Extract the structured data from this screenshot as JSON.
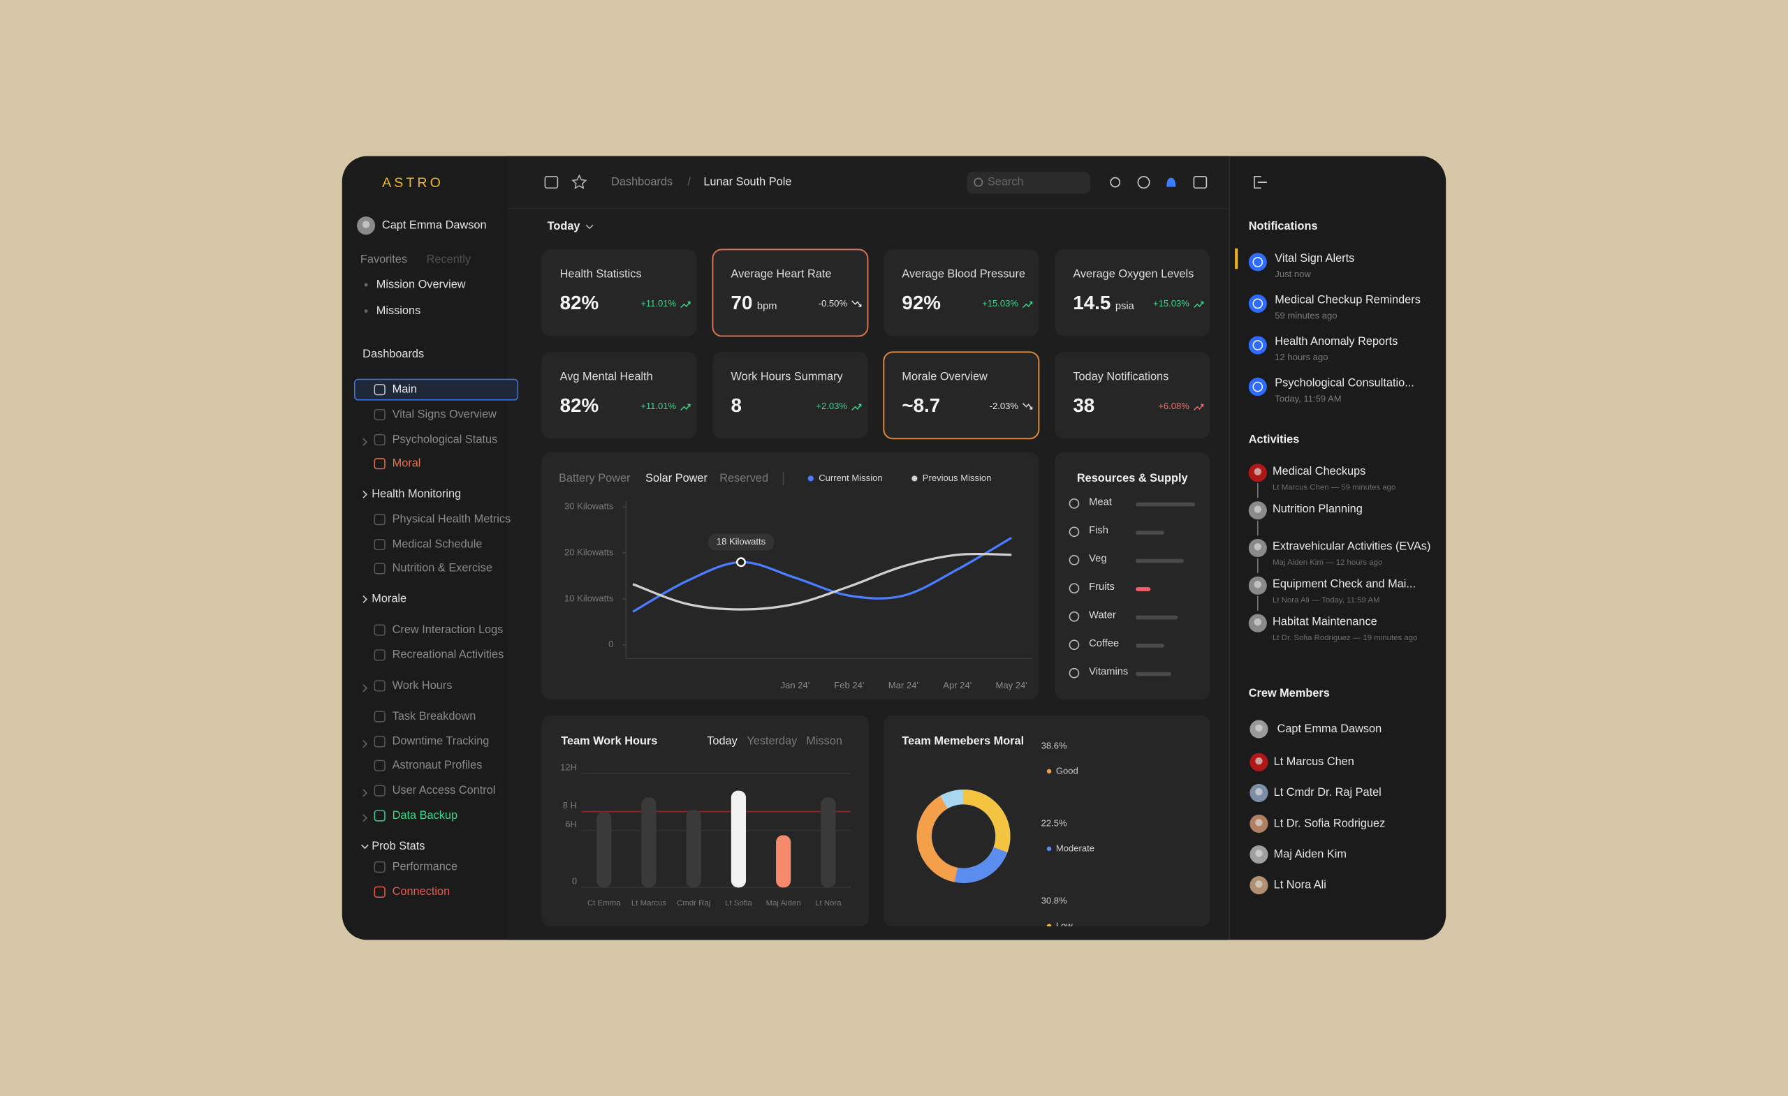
{
  "brand": "ASTRO",
  "user": "Capt Emma Dawson",
  "breadcrumb": [
    "Dashboards",
    "Lunar South Pole"
  ],
  "breadcrumb_separator": "/",
  "search": "Search",
  "sidebar": {
    "tabs": [
      "Favorites",
      "Recently"
    ],
    "favorites": [
      "Mission Overview",
      "Missions"
    ],
    "section": "Dashboards",
    "items": [
      {
        "label": "Main",
        "selected": true
      },
      {
        "label": "Vital Signs Overview"
      },
      {
        "label": "Psychological Status",
        "expandable": true
      },
      {
        "label": "Moral",
        "color": "#e8734a"
      },
      {
        "label": "Health Monitoring",
        "group": true
      },
      {
        "label": "Physical Health Metrics"
      },
      {
        "label": "Medical Schedule"
      },
      {
        "label": "Nutrition & Exercise"
      },
      {
        "label": "Morale",
        "group": true
      },
      {
        "label": "Crew Interaction Logs"
      },
      {
        "label": "Recreational Activities"
      },
      {
        "label": "Work Hours",
        "expandable": true
      },
      {
        "label": "Task Breakdown"
      },
      {
        "label": "Downtime Tracking",
        "expandable": true
      },
      {
        "label": "Astronaut Profiles"
      },
      {
        "label": "User Access Control",
        "expandable": true
      },
      {
        "label": "Data Backup",
        "expandable": true,
        "color": "#3dd68c"
      },
      {
        "label": "Prob Stats",
        "group": true
      },
      {
        "label": "Performance"
      },
      {
        "label": "Connection",
        "color": "#f0584a"
      }
    ]
  },
  "filter": "Today",
  "kpis": [
    {
      "title": "Health Statistics",
      "value": "82%",
      "change": "+11.01%",
      "color": "#3dd68c",
      "trend": "up"
    },
    {
      "title": "Average Heart Rate",
      "value": "70",
      "unit": "bpm",
      "change": "-0.50%",
      "color": "#e6e6e6",
      "trend": "down",
      "highlight": "#d9735a"
    },
    {
      "title": "Average Blood Pressure",
      "value": "92%",
      "change": "+15.03%",
      "color": "#3dd68c",
      "trend": "up"
    },
    {
      "title": "Average Oxygen Levels",
      "value": "14.5",
      "unit": "psia",
      "change": "+15.03%",
      "color": "#3dd68c",
      "trend": "up"
    },
    {
      "title": "Avg Mental Health",
      "value": "82%",
      "change": "+11.01%",
      "color": "#3dd68c",
      "trend": "up"
    },
    {
      "title": "Work Hours Summary",
      "value": "8",
      "change": "+2.03%",
      "color": "#3dd68c",
      "trend": "up"
    },
    {
      "title": "Morale Overview",
      "value": "~8.7",
      "change": "-2.03%",
      "color": "#e6e6e6",
      "trend": "down",
      "highlight": "#e08a3c"
    },
    {
      "title": "Today Notifications",
      "value": "38",
      "change": "+6.08%",
      "color": "#f0706a",
      "trend": "up"
    }
  ],
  "chart_data": [
    {
      "type": "line",
      "tabs": [
        "Battery Power",
        "Solar Power",
        "Reserved"
      ],
      "active_tab": 1,
      "categories": [
        null,
        null,
        null,
        "Jan 24'",
        "Feb 24'",
        "Mar 24'",
        "Apr 24'",
        "May 24'"
      ],
      "series": [
        {
          "name": "Current Mission",
          "color": "#4a7dff",
          "values": [
            7.2,
            13.9,
            18,
            14.6,
            10.7,
            10.7,
            16.4,
            23.3
          ],
          "value_labels": [
            null,
            null,
            "18 Kilowatts",
            null,
            null,
            null,
            null,
            null
          ]
        },
        {
          "name": "Previous Mission",
          "color": "#d0d0d0",
          "values": [
            13.2,
            8.9,
            7.7,
            8.9,
            12.7,
            17.1,
            19.6,
            19.6
          ]
        }
      ],
      "ylim": [
        0,
        30
      ],
      "yticks": [
        {
          "value": 30,
          "label": "30 Kilowatts"
        },
        {
          "value": 20,
          "label": "20 Kilowatts"
        },
        {
          "value": 10,
          "label": "10 Kilowatts"
        },
        0
      ]
    },
    {
      "type": "hbar",
      "title": "Resources & Supply",
      "categories": [
        "Meat",
        "Fish",
        "Veg",
        "Fruits",
        "Water",
        "Coffee",
        "Vitamins"
      ],
      "values": [
        100,
        48,
        81,
        25,
        71,
        48,
        60
      ],
      "colors": [
        "#4a4a4a",
        "#4a4a4a",
        "#4a4a4a",
        "#f0606a",
        "#4a4a4a",
        "#4a4a4a",
        "#4a4a4a"
      ],
      "xlim": [
        0,
        100
      ]
    },
    {
      "type": "bar",
      "title": "Team Work Hours",
      "tabs": [
        "Today",
        "Yesterday",
        "Misson"
      ],
      "active_tab": 0,
      "categories": [
        "Ct Emma",
        "Lt Marcus",
        "Cmdr Raj",
        "Lt Sofia",
        "Maj Aiden",
        "Lt Nora"
      ],
      "values": [
        8,
        9.5,
        8.2,
        10.2,
        5.5,
        9.5
      ],
      "colors": [
        "#3a3a3a",
        "#3a3a3a",
        "#3a3a3a",
        "#f2f2f2",
        "#f4896b",
        "#3a3a3a"
      ],
      "ylim": [
        0,
        12
      ],
      "yticks": [
        0,
        {
          "value": 6,
          "label": "6H"
        },
        {
          "value": 8,
          "label": "8 H"
        },
        {
          "value": 12,
          "label": "12H"
        }
      ],
      "threshold": 8,
      "threshold_color": "#8a2a2a",
      "grid": true
    },
    {
      "type": "donut",
      "title": "Team Memebers Moral",
      "categories": [
        "Good",
        "Moderate",
        "Low"
      ],
      "values": [
        38.6,
        22.5,
        30.8
      ],
      "value_labels": [
        "38.6%",
        "22.5%",
        "30.8%"
      ],
      "colors": [
        "#f4a04a",
        "#5b8def",
        "#f5c542"
      ],
      "track_color": "#a8d8f0"
    }
  ],
  "notifications": {
    "title": "Notifications",
    "items": [
      {
        "title": "Vital Sign Alerts",
        "time": "Just now"
      },
      {
        "title": "Medical Checkup Reminders",
        "time": "59 minutes ago"
      },
      {
        "title": "Health Anomaly Reports",
        "time": "12 hours ago"
      },
      {
        "title": "Psychological Consultatio...",
        "time": "Today, 11:59 AM"
      }
    ]
  },
  "activities": {
    "title": "Activities",
    "items": [
      {
        "title": "Medical Checkups",
        "meta": "Lt Marcus Chen — 59 minutes ago"
      },
      {
        "title": "Nutrition Planning"
      },
      {
        "title": "Extravehicular Activities (EVAs)",
        "meta": "Maj Aiden Kim — 12 hours ago"
      },
      {
        "title": "Equipment Check and Mai...",
        "meta": "Lt Nora Ali — Today, 11:59 AM"
      },
      {
        "title": "Habitat Maintenance",
        "meta": "Lt Dr. Sofia Rodriguez — 19 minutes ago"
      }
    ]
  },
  "crew": {
    "title": "Crew Members",
    "names": [
      "Capt Emma Dawson",
      "Lt Marcus Chen",
      "Lt Cmdr Dr. Raj Patel",
      "Lt Dr. Sofia Rodriguez",
      "Maj Aiden Kim",
      "Lt Nora Ali"
    ]
  }
}
